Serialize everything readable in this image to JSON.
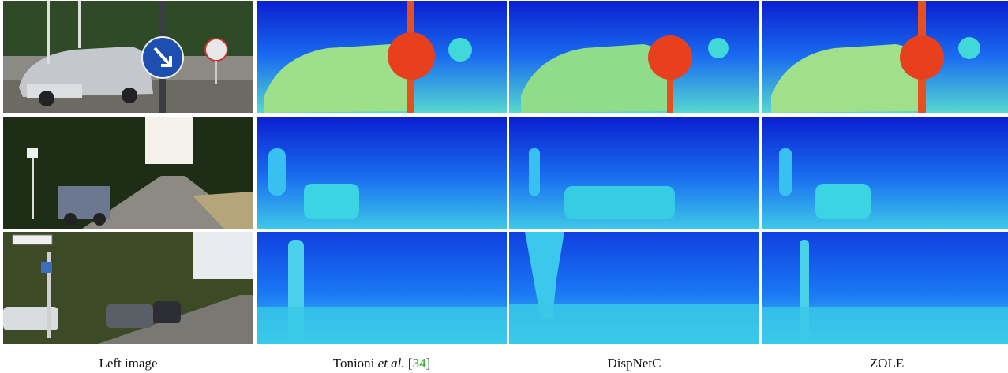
{
  "captions": {
    "left_image": "Left image",
    "tonioni_prefix": "Tonioni ",
    "tonioni_italic": "et al.",
    "tonioni_open": " [",
    "tonioni_ref": "34",
    "tonioni_close": "]",
    "dispnetc": "DispNetC",
    "zole": "ZOLE"
  },
  "colors": {
    "disparity_far": "#0a1fd0",
    "disparity_mid": "#1ea3ff",
    "disparity_near": "#5fe0c8",
    "disparity_close": "#e8402a",
    "reference_link": "#1aaa1a"
  }
}
